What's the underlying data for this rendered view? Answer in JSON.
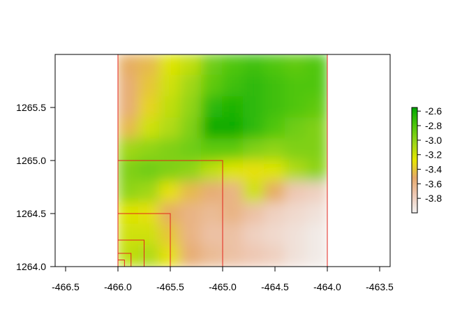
{
  "chart_data": {
    "type": "heatmap",
    "title": "",
    "xlabel": "",
    "ylabel": "",
    "xlim": [
      -466.6,
      -463.4
    ],
    "ylim": [
      1264.0,
      1266.0
    ],
    "x_ticks": [
      "-466.5",
      "-466.0",
      "-465.5",
      "-465.0",
      "-464.5",
      "-464.0",
      "-463.5"
    ],
    "y_ticks": [
      "1264.0",
      "1264.5",
      "1265.0",
      "1265.5"
    ],
    "raster_extent": {
      "xmin": -466.0,
      "xmax": -464.0,
      "ymin": 1264.0,
      "ymax": 1266.0
    },
    "value_range": [
      -4.0,
      -2.55
    ],
    "legend": {
      "position": "right",
      "ticks": [
        "-2.6",
        "-2.8",
        "-3.0",
        "-3.2",
        "-3.4",
        "-3.6",
        "-3.8"
      ],
      "colors": [
        "#F2F2F2",
        "#EEC9B6",
        "#E6A96A",
        "#E6E600",
        "#9BD61A",
        "#4CC50B",
        "#00A600"
      ]
    },
    "value_grid": [
      [
        -3.5,
        -3.45,
        -3.25,
        -3.15,
        -2.9,
        -2.8,
        -2.75,
        -2.8,
        -2.85,
        -2.8
      ],
      [
        -3.55,
        -3.4,
        -3.2,
        -3.05,
        -2.85,
        -2.75,
        -2.7,
        -2.75,
        -2.8,
        -2.8
      ],
      [
        -3.55,
        -3.35,
        -3.15,
        -3.0,
        -2.7,
        -2.65,
        -2.7,
        -2.75,
        -2.8,
        -2.85
      ],
      [
        -3.45,
        -3.2,
        -3.1,
        -2.95,
        -2.6,
        -2.6,
        -2.7,
        -2.8,
        -2.9,
        -2.95
      ],
      [
        -3.05,
        -3.0,
        -2.95,
        -2.9,
        -2.85,
        -2.85,
        -2.95,
        -3.0,
        -2.95,
        -2.95
      ],
      [
        -2.95,
        -2.9,
        -2.95,
        -3.0,
        -3.15,
        -3.25,
        -3.3,
        -3.25,
        -3.1,
        -3.0
      ],
      [
        -3.0,
        -3.05,
        -3.3,
        -3.45,
        -3.55,
        -3.6,
        -3.2,
        -3.5,
        -3.75,
        -3.8
      ],
      [
        -3.25,
        -3.3,
        -3.5,
        -3.6,
        -3.65,
        -3.6,
        -3.7,
        -3.8,
        -3.85,
        -3.9
      ],
      [
        -3.2,
        -3.2,
        -3.4,
        -3.6,
        -3.7,
        -3.7,
        -3.8,
        -3.85,
        -3.9,
        -3.95
      ],
      [
        -3.15,
        -3.1,
        -3.3,
        -3.55,
        -3.65,
        -3.7,
        -3.75,
        -3.8,
        -3.9,
        -3.95
      ]
    ],
    "overlay_rectangles": [
      {
        "xmin": -466.0,
        "xmax": -464.0,
        "ymin": 1264.0,
        "ymax": 1266.0
      },
      {
        "xmin": -466.0,
        "xmax": -465.0,
        "ymin": 1264.0,
        "ymax": 1265.0
      },
      {
        "xmin": -466.0,
        "xmax": -465.5,
        "ymin": 1264.0,
        "ymax": 1264.5
      },
      {
        "xmin": -466.0,
        "xmax": -465.75,
        "ymin": 1264.0,
        "ymax": 1264.25
      },
      {
        "xmin": -466.0,
        "xmax": -465.875,
        "ymin": 1264.0,
        "ymax": 1264.125
      },
      {
        "xmin": -466.0,
        "xmax": -465.9375,
        "ymin": 1264.0,
        "ymax": 1264.0625
      }
    ],
    "overlay_color": "#E3241B"
  }
}
